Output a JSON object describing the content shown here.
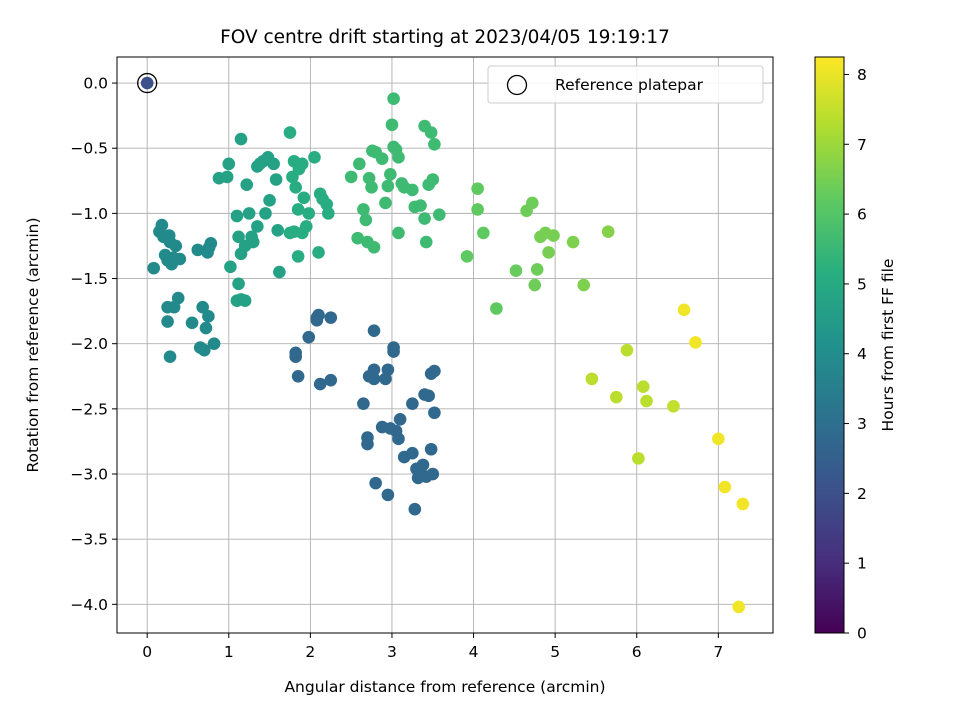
{
  "chart_data": {
    "type": "scatter",
    "title": "FOV centre drift starting at 2023/04/05 19:19:17",
    "xlabel": "Angular distance from reference (arcmin)",
    "ylabel": "Rotation from reference (arcmin)",
    "xlim": [
      -0.37,
      7.67
    ],
    "ylim": [
      -4.22,
      0.2
    ],
    "xticks": [
      0,
      1,
      2,
      3,
      4,
      5,
      6,
      7
    ],
    "yticks": [
      0.0,
      -0.5,
      -1.0,
      -1.5,
      -2.0,
      -2.5,
      -3.0,
      -3.5,
      -4.0
    ],
    "xtick_labels": [
      "0",
      "1",
      "2",
      "3",
      "4",
      "5",
      "6",
      "7"
    ],
    "ytick_labels": [
      "0.0",
      "−0.5",
      "−1.0",
      "−1.5",
      "−2.0",
      "−2.5",
      "−3.0",
      "−3.5",
      "−4.0"
    ],
    "grid": true,
    "legend": {
      "placement": "top-right",
      "label": "Reference platepar"
    },
    "colorbar": {
      "label": "Hours from first FF file",
      "range": [
        0,
        8.25
      ],
      "ticks": [
        0,
        1,
        2,
        3,
        4,
        5,
        6,
        7,
        8
      ],
      "tick_labels": [
        "0",
        "1",
        "2",
        "3",
        "4",
        "5",
        "6",
        "7",
        "8"
      ],
      "colormap": "viridis"
    },
    "reference_point": {
      "x": 0.0,
      "y": 0.0
    },
    "points": [
      [
        0.0,
        0.0,
        2.0
      ],
      [
        0.08,
        -1.42,
        3.9
      ],
      [
        0.15,
        -1.14,
        3.9
      ],
      [
        0.18,
        -1.09,
        3.9
      ],
      [
        0.2,
        -1.18,
        3.9
      ],
      [
        0.22,
        -1.32,
        3.9
      ],
      [
        0.25,
        -1.36,
        3.9
      ],
      [
        0.28,
        -1.22,
        3.9
      ],
      [
        0.3,
        -1.39,
        3.9
      ],
      [
        0.32,
        -1.34,
        3.9
      ],
      [
        0.35,
        -1.25,
        3.9
      ],
      [
        0.4,
        -1.35,
        3.9
      ],
      [
        0.27,
        -1.17,
        3.9
      ],
      [
        0.25,
        -1.72,
        3.9
      ],
      [
        0.25,
        -1.83,
        3.9
      ],
      [
        0.38,
        -1.65,
        3.9
      ],
      [
        0.33,
        -1.72,
        3.9
      ],
      [
        0.28,
        -2.1,
        3.9
      ],
      [
        0.55,
        -1.84,
        3.9
      ],
      [
        0.62,
        -1.28,
        3.9
      ],
      [
        0.68,
        -1.72,
        3.9
      ],
      [
        0.72,
        -1.88,
        3.9
      ],
      [
        0.75,
        -1.79,
        3.9
      ],
      [
        0.65,
        -2.03,
        3.9
      ],
      [
        0.7,
        -2.05,
        3.9
      ],
      [
        0.82,
        -2.0,
        3.9
      ],
      [
        0.76,
        -1.26,
        3.9
      ],
      [
        0.74,
        -1.3,
        3.9
      ],
      [
        0.78,
        -1.23,
        3.9
      ],
      [
        0.88,
        -0.73,
        4.7
      ],
      [
        1.0,
        -0.62,
        4.7
      ],
      [
        1.02,
        -1.41,
        4.7
      ],
      [
        1.1,
        -1.67,
        4.7
      ],
      [
        1.15,
        -1.66,
        4.7
      ],
      [
        1.2,
        -1.67,
        4.7
      ],
      [
        1.12,
        -1.54,
        4.7
      ],
      [
        1.15,
        -1.31,
        4.7
      ],
      [
        1.2,
        -1.25,
        4.7
      ],
      [
        1.12,
        -1.18,
        4.7
      ],
      [
        1.1,
        -1.02,
        4.7
      ],
      [
        0.98,
        -0.72,
        4.7
      ],
      [
        1.15,
        -0.43,
        4.7
      ],
      [
        1.22,
        -0.78,
        4.7
      ],
      [
        1.25,
        -1.0,
        4.7
      ],
      [
        1.28,
        -1.18,
        4.7
      ],
      [
        1.3,
        -1.22,
        4.7
      ],
      [
        1.35,
        -0.64,
        4.7
      ],
      [
        1.38,
        -0.62,
        4.7
      ],
      [
        1.42,
        -0.6,
        4.7
      ],
      [
        1.48,
        -0.57,
        4.7
      ],
      [
        1.5,
        -0.9,
        4.7
      ],
      [
        1.45,
        -1.0,
        4.7
      ],
      [
        1.35,
        -1.1,
        4.7
      ],
      [
        1.55,
        -0.62,
        4.7
      ],
      [
        1.58,
        -0.74,
        4.7
      ],
      [
        1.6,
        -1.13,
        4.7
      ],
      [
        1.62,
        -1.45,
        4.7
      ],
      [
        1.75,
        -0.38,
        5.1
      ],
      [
        1.78,
        -0.72,
        5.1
      ],
      [
        1.8,
        -0.6,
        5.1
      ],
      [
        1.82,
        -0.8,
        5.1
      ],
      [
        1.86,
        -0.66,
        5.1
      ],
      [
        1.9,
        -0.62,
        5.1
      ],
      [
        1.92,
        -0.88,
        5.1
      ],
      [
        1.75,
        -1.15,
        5.1
      ],
      [
        1.8,
        -1.14,
        5.1
      ],
      [
        1.85,
        -1.33,
        5.1
      ],
      [
        1.9,
        -1.15,
        5.1
      ],
      [
        1.95,
        -1.1,
        5.1
      ],
      [
        1.98,
        -1.0,
        5.1
      ],
      [
        1.85,
        -0.97,
        5.1
      ],
      [
        2.05,
        -0.57,
        5.1
      ],
      [
        2.12,
        -0.85,
        5.1
      ],
      [
        2.15,
        -0.89,
        5.1
      ],
      [
        2.2,
        -0.93,
        5.1
      ],
      [
        2.22,
        -1.0,
        5.1
      ],
      [
        2.1,
        -1.3,
        5.1
      ],
      [
        2.5,
        -0.72,
        5.6
      ],
      [
        2.6,
        -0.62,
        5.6
      ],
      [
        2.65,
        -0.97,
        5.6
      ],
      [
        2.68,
        -1.05,
        5.6
      ],
      [
        2.72,
        -0.73,
        5.6
      ],
      [
        2.75,
        -0.8,
        5.6
      ],
      [
        2.76,
        -0.52,
        5.6
      ],
      [
        2.8,
        -0.53,
        5.6
      ],
      [
        2.88,
        -0.58,
        5.6
      ],
      [
        2.92,
        -0.92,
        5.6
      ],
      [
        2.95,
        -0.79,
        5.6
      ],
      [
        2.98,
        -0.7,
        5.6
      ],
      [
        3.0,
        -0.32,
        5.6
      ],
      [
        3.02,
        -0.12,
        5.6
      ],
      [
        3.05,
        -0.51,
        5.6
      ],
      [
        3.08,
        -0.57,
        5.6
      ],
      [
        3.12,
        -0.77,
        5.6
      ],
      [
        3.15,
        -0.8,
        5.6
      ],
      [
        2.58,
        -1.19,
        5.6
      ],
      [
        2.7,
        -1.22,
        5.6
      ],
      [
        2.78,
        -1.26,
        5.6
      ],
      [
        3.08,
        -1.15,
        5.6
      ],
      [
        3.25,
        -0.82,
        5.6
      ],
      [
        3.28,
        -0.95,
        5.6
      ],
      [
        3.35,
        -0.94,
        5.6
      ],
      [
        3.4,
        -1.04,
        5.6
      ],
      [
        3.4,
        -0.33,
        5.6
      ],
      [
        3.45,
        -0.78,
        5.6
      ],
      [
        3.48,
        -0.38,
        5.6
      ],
      [
        3.52,
        -0.47,
        5.6
      ],
      [
        3.5,
        -0.74,
        5.6
      ],
      [
        3.58,
        -1.01,
        5.6
      ],
      [
        3.42,
        -1.22,
        5.6
      ],
      [
        3.02,
        -0.49,
        5.6
      ],
      [
        3.92,
        -1.33,
        6.2
      ],
      [
        4.05,
        -0.81,
        6.2
      ],
      [
        4.05,
        -0.97,
        6.2
      ],
      [
        4.12,
        -1.15,
        6.2
      ],
      [
        4.28,
        -1.73,
        6.2
      ],
      [
        4.52,
        -1.44,
        6.3
      ],
      [
        4.65,
        -0.98,
        6.4
      ],
      [
        4.72,
        -0.92,
        6.4
      ],
      [
        4.75,
        -1.55,
        6.4
      ],
      [
        4.78,
        -1.43,
        6.4
      ],
      [
        4.82,
        -1.18,
        6.5
      ],
      [
        4.88,
        -1.15,
        6.5
      ],
      [
        4.92,
        -1.3,
        6.5
      ],
      [
        4.98,
        -1.17,
        6.5
      ],
      [
        5.22,
        -1.22,
        6.6
      ],
      [
        5.35,
        -1.55,
        6.6
      ],
      [
        5.65,
        -1.14,
        6.7
      ],
      [
        2.08,
        -1.8,
        2.8
      ],
      [
        2.1,
        -1.78,
        2.8
      ],
      [
        2.08,
        -1.82,
        2.8
      ],
      [
        2.25,
        -1.8,
        2.8
      ],
      [
        1.98,
        -1.95,
        2.8
      ],
      [
        1.82,
        -2.07,
        2.8
      ],
      [
        1.82,
        -2.1,
        2.8
      ],
      [
        1.85,
        -2.25,
        2.8
      ],
      [
        2.12,
        -2.31,
        2.8
      ],
      [
        2.25,
        -2.28,
        2.8
      ],
      [
        2.65,
        -2.46,
        2.8
      ],
      [
        2.7,
        -2.72,
        2.8
      ],
      [
        2.7,
        -2.77,
        2.8
      ],
      [
        2.72,
        -2.25,
        2.8
      ],
      [
        2.78,
        -2.27,
        2.8
      ],
      [
        2.78,
        -2.2,
        2.8
      ],
      [
        2.78,
        -1.9,
        2.8
      ],
      [
        2.8,
        -3.07,
        2.8
      ],
      [
        2.88,
        -2.64,
        2.8
      ],
      [
        2.92,
        -2.27,
        2.8
      ],
      [
        2.95,
        -2.2,
        2.8
      ],
      [
        2.95,
        -3.16,
        2.8
      ],
      [
        2.98,
        -2.65,
        2.8
      ],
      [
        3.02,
        -2.03,
        2.8
      ],
      [
        3.02,
        -2.06,
        2.8
      ],
      [
        3.05,
        -2.67,
        2.8
      ],
      [
        3.08,
        -2.73,
        2.8
      ],
      [
        3.1,
        -2.58,
        2.8
      ],
      [
        3.15,
        -2.87,
        2.8
      ],
      [
        3.25,
        -2.46,
        2.8
      ],
      [
        3.25,
        -2.84,
        2.8
      ],
      [
        3.28,
        -3.27,
        2.8
      ],
      [
        3.3,
        -2.96,
        2.8
      ],
      [
        3.32,
        -3.03,
        2.8
      ],
      [
        3.35,
        -2.99,
        2.8
      ],
      [
        3.38,
        -2.93,
        2.8
      ],
      [
        3.4,
        -2.39,
        2.8
      ],
      [
        3.42,
        -3.02,
        2.8
      ],
      [
        3.45,
        -2.4,
        2.8
      ],
      [
        3.48,
        -2.81,
        2.8
      ],
      [
        3.48,
        -2.23,
        2.8
      ],
      [
        3.5,
        -3.0,
        2.8
      ],
      [
        3.52,
        -2.21,
        2.8
      ],
      [
        3.52,
        -2.53,
        2.8
      ],
      [
        5.45,
        -2.27,
        7.4
      ],
      [
        5.75,
        -2.41,
        7.4
      ],
      [
        5.88,
        -2.05,
        7.4
      ],
      [
        6.02,
        -2.88,
        7.4
      ],
      [
        6.08,
        -2.33,
        7.4
      ],
      [
        6.12,
        -2.44,
        7.4
      ],
      [
        6.45,
        -2.48,
        7.5
      ],
      [
        6.58,
        -1.74,
        8.1
      ],
      [
        6.72,
        -1.99,
        8.1
      ],
      [
        7.0,
        -2.73,
        8.1
      ],
      [
        7.08,
        -3.1,
        8.1
      ],
      [
        7.25,
        -4.02,
        8.1
      ],
      [
        7.3,
        -3.23,
        8.1
      ]
    ]
  }
}
